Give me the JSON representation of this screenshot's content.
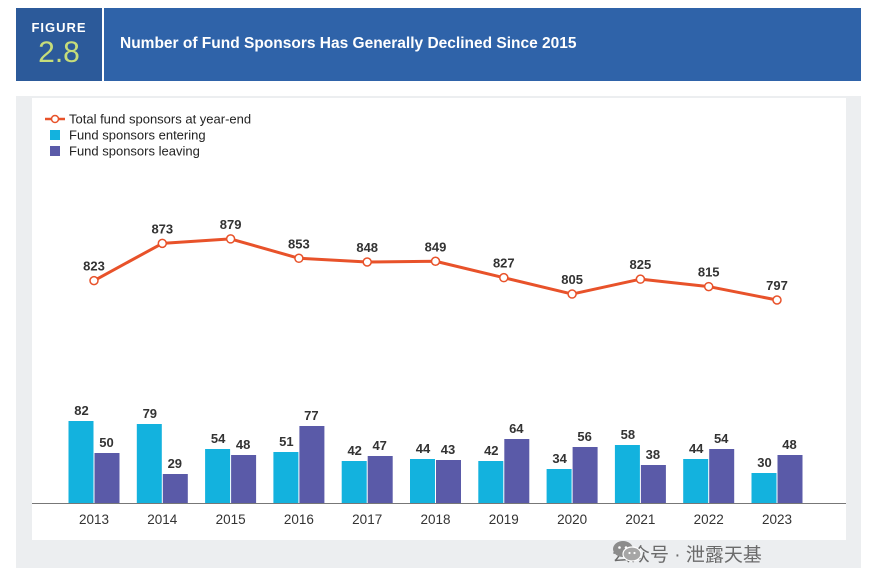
{
  "figure": {
    "label": "FIGURE",
    "number": "2.8"
  },
  "title": "Number of Fund Sponsors Has Generally Declined Since 2015",
  "chart_data": {
    "type": "bar",
    "title": "Number of Fund Sponsors Has Generally Declined Since 2015",
    "categories": [
      "2013",
      "2014",
      "2015",
      "2016",
      "2017",
      "2018",
      "2019",
      "2020",
      "2021",
      "2022",
      "2023"
    ],
    "series": [
      {
        "name": "Total fund sponsors at year-end",
        "kind": "line",
        "color": "#e8522a",
        "values": [
          823,
          873,
          879,
          853,
          848,
          849,
          827,
          805,
          825,
          815,
          797
        ]
      },
      {
        "name": "Fund sponsors entering",
        "kind": "bar",
        "color": "#13b2de",
        "values": [
          82,
          79,
          54,
          51,
          42,
          44,
          42,
          34,
          58,
          44,
          30
        ]
      },
      {
        "name": "Fund sponsors leaving",
        "kind": "bar",
        "color": "#5a5aa8",
        "values": [
          50,
          29,
          48,
          77,
          47,
          43,
          64,
          56,
          38,
          54,
          48
        ]
      }
    ],
    "legend_position": "top-left",
    "grid": false
  },
  "watermark": {
    "text": "公众号 · 泄露天基"
  }
}
